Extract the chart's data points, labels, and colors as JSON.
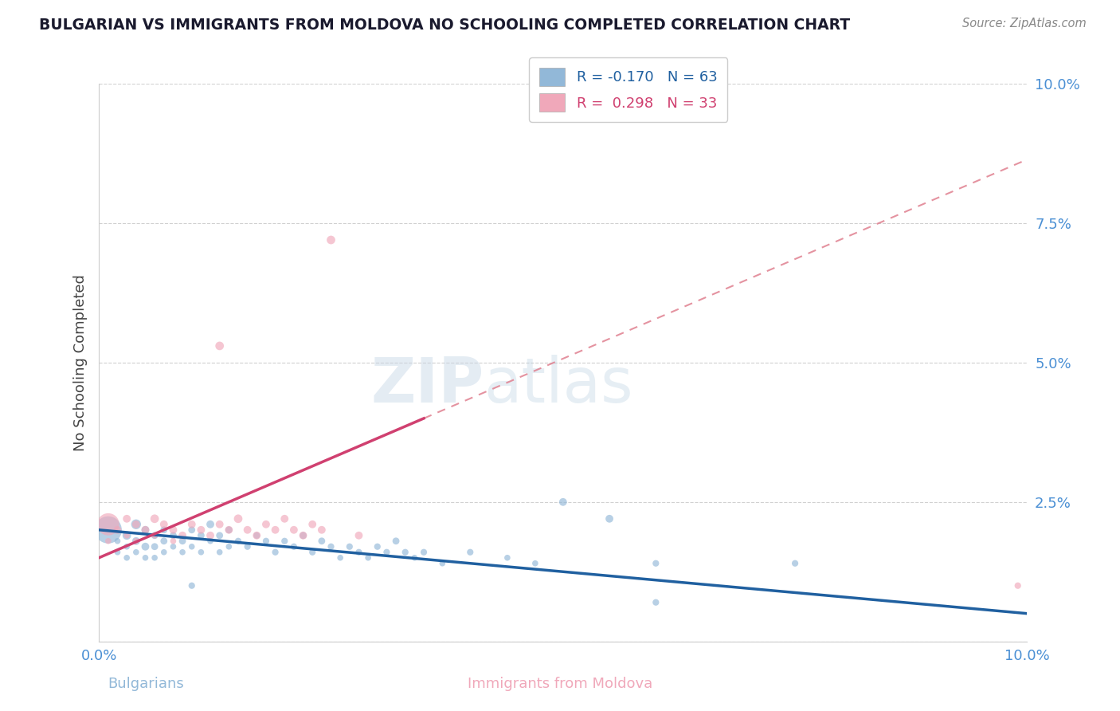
{
  "title": "BULGARIAN VS IMMIGRANTS FROM MOLDOVA NO SCHOOLING COMPLETED CORRELATION CHART",
  "source": "Source: ZipAtlas.com",
  "ylabel": "No Schooling Completed",
  "xlabel_blue": "Bulgarians",
  "xlabel_pink": "Immigrants from Moldova",
  "watermark_zip": "ZIP",
  "watermark_atlas": "atlas",
  "xlim": [
    0.0,
    0.1
  ],
  "ylim": [
    0.0,
    0.1
  ],
  "yticks": [
    0.0,
    0.025,
    0.05,
    0.075,
    0.1
  ],
  "ytick_labels": [
    "",
    "2.5%",
    "5.0%",
    "7.5%",
    "10.0%"
  ],
  "xticks": [
    0.0,
    0.025,
    0.05,
    0.075,
    0.1
  ],
  "xtick_labels": [
    "0.0%",
    "",
    "",
    "",
    "10.0%"
  ],
  "legend_blue_R": "-0.170",
  "legend_blue_N": "63",
  "legend_pink_R": "0.298",
  "legend_pink_N": "33",
  "blue_dot_color": "#92b8d8",
  "pink_dot_color": "#f0a8ba",
  "blue_line_color": "#2060a0",
  "pink_line_color": "#d04070",
  "pink_dash_color": "#e08090",
  "title_color": "#1a1a2e",
  "axis_label_color": "#444444",
  "tick_color": "#4a8fd4",
  "grid_color": "#d0d0d0",
  "blue_regression": [
    0.02,
    0.005
  ],
  "pink_regression_solid": [
    0.015,
    0.04
  ],
  "pink_solid_xrange": [
    0.0,
    0.035
  ],
  "pink_dashed_xrange": [
    0.035,
    0.1
  ],
  "blue_scatter": [
    [
      0.001,
      0.02
    ],
    [
      0.002,
      0.018
    ],
    [
      0.002,
      0.016
    ],
    [
      0.003,
      0.019
    ],
    [
      0.003,
      0.017
    ],
    [
      0.003,
      0.015
    ],
    [
      0.004,
      0.021
    ],
    [
      0.004,
      0.018
    ],
    [
      0.004,
      0.016
    ],
    [
      0.005,
      0.02
    ],
    [
      0.005,
      0.017
    ],
    [
      0.005,
      0.015
    ],
    [
      0.006,
      0.019
    ],
    [
      0.006,
      0.017
    ],
    [
      0.006,
      0.015
    ],
    [
      0.007,
      0.02
    ],
    [
      0.007,
      0.018
    ],
    [
      0.007,
      0.016
    ],
    [
      0.008,
      0.019
    ],
    [
      0.008,
      0.017
    ],
    [
      0.009,
      0.018
    ],
    [
      0.009,
      0.016
    ],
    [
      0.01,
      0.02
    ],
    [
      0.01,
      0.017
    ],
    [
      0.011,
      0.019
    ],
    [
      0.011,
      0.016
    ],
    [
      0.012,
      0.021
    ],
    [
      0.012,
      0.018
    ],
    [
      0.013,
      0.019
    ],
    [
      0.013,
      0.016
    ],
    [
      0.014,
      0.02
    ],
    [
      0.014,
      0.017
    ],
    [
      0.015,
      0.018
    ],
    [
      0.016,
      0.017
    ],
    [
      0.017,
      0.019
    ],
    [
      0.018,
      0.018
    ],
    [
      0.019,
      0.016
    ],
    [
      0.02,
      0.018
    ],
    [
      0.021,
      0.017
    ],
    [
      0.022,
      0.019
    ],
    [
      0.023,
      0.016
    ],
    [
      0.024,
      0.018
    ],
    [
      0.025,
      0.017
    ],
    [
      0.026,
      0.015
    ],
    [
      0.027,
      0.017
    ],
    [
      0.028,
      0.016
    ],
    [
      0.029,
      0.015
    ],
    [
      0.03,
      0.017
    ],
    [
      0.031,
      0.016
    ],
    [
      0.032,
      0.018
    ],
    [
      0.033,
      0.016
    ],
    [
      0.034,
      0.015
    ],
    [
      0.035,
      0.016
    ],
    [
      0.037,
      0.014
    ],
    [
      0.04,
      0.016
    ],
    [
      0.044,
      0.015
    ],
    [
      0.047,
      0.014
    ],
    [
      0.05,
      0.025
    ],
    [
      0.055,
      0.022
    ],
    [
      0.06,
      0.014
    ],
    [
      0.075,
      0.014
    ],
    [
      0.01,
      0.01
    ],
    [
      0.06,
      0.007
    ]
  ],
  "blue_sizes": [
    600,
    30,
    30,
    60,
    30,
    30,
    80,
    50,
    30,
    50,
    50,
    30,
    40,
    40,
    30,
    40,
    40,
    30,
    40,
    30,
    40,
    30,
    40,
    30,
    40,
    30,
    50,
    30,
    40,
    30,
    40,
    30,
    35,
    35,
    35,
    35,
    35,
    35,
    35,
    40,
    35,
    40,
    35,
    30,
    35,
    35,
    30,
    35,
    35,
    40,
    35,
    30,
    35,
    30,
    35,
    30,
    30,
    50,
    50,
    35,
    35,
    35,
    35
  ],
  "pink_scatter": [
    [
      0.001,
      0.021
    ],
    [
      0.001,
      0.018
    ],
    [
      0.002,
      0.02
    ],
    [
      0.003,
      0.022
    ],
    [
      0.003,
      0.019
    ],
    [
      0.004,
      0.021
    ],
    [
      0.004,
      0.018
    ],
    [
      0.005,
      0.02
    ],
    [
      0.006,
      0.022
    ],
    [
      0.006,
      0.019
    ],
    [
      0.007,
      0.021
    ],
    [
      0.008,
      0.02
    ],
    [
      0.008,
      0.018
    ],
    [
      0.009,
      0.019
    ],
    [
      0.01,
      0.021
    ],
    [
      0.011,
      0.02
    ],
    [
      0.012,
      0.019
    ],
    [
      0.013,
      0.021
    ],
    [
      0.013,
      0.053
    ],
    [
      0.014,
      0.02
    ],
    [
      0.015,
      0.022
    ],
    [
      0.016,
      0.02
    ],
    [
      0.017,
      0.019
    ],
    [
      0.018,
      0.021
    ],
    [
      0.019,
      0.02
    ],
    [
      0.02,
      0.022
    ],
    [
      0.021,
      0.02
    ],
    [
      0.022,
      0.019
    ],
    [
      0.023,
      0.021
    ],
    [
      0.024,
      0.02
    ],
    [
      0.025,
      0.072
    ],
    [
      0.028,
      0.019
    ],
    [
      0.099,
      0.01
    ]
  ],
  "pink_sizes": [
    400,
    30,
    50,
    50,
    30,
    50,
    30,
    50,
    60,
    30,
    50,
    50,
    30,
    50,
    50,
    50,
    50,
    50,
    60,
    50,
    60,
    50,
    50,
    50,
    50,
    50,
    50,
    50,
    50,
    50,
    60,
    50,
    35
  ]
}
